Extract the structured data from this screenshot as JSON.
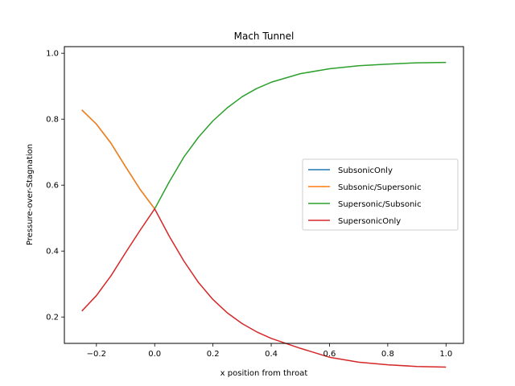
{
  "chart_data": {
    "type": "line",
    "title": "Mach Tunnel",
    "xlabel": "x position from throat",
    "ylabel": "Pressure-over-Stagnation",
    "xlim": [
      -0.31,
      1.06
    ],
    "ylim": [
      0.12,
      1.02
    ],
    "xticks": [
      -0.2,
      0.0,
      0.2,
      0.4,
      0.6,
      0.8,
      1.0
    ],
    "xtick_labels": [
      "−0.2",
      "0.0",
      "0.2",
      "0.4",
      "0.6",
      "0.8",
      "1.0"
    ],
    "yticks": [
      0.2,
      0.4,
      0.6,
      0.8,
      1.0
    ],
    "ytick_labels": [
      "0.2",
      "0.4",
      "0.6",
      "0.8",
      "1.0"
    ],
    "grid": false,
    "legend_position": "center-right",
    "series": [
      {
        "name": "SubsonicOnly",
        "color": "#1f77b4",
        "x": [
          -0.25,
          -0.2,
          -0.15,
          -0.1,
          -0.05,
          0.0
        ],
        "y": [
          0.828,
          0.785,
          0.727,
          0.656,
          0.587,
          0.528
        ]
      },
      {
        "name": "Subsonic/Supersonic",
        "color": "#ff7f0e",
        "x": [
          -0.25,
          -0.2,
          -0.15,
          -0.1,
          -0.05,
          0.0
        ],
        "y": [
          0.828,
          0.785,
          0.727,
          0.656,
          0.587,
          0.528
        ]
      },
      {
        "name": "Supersonic/Subsonic",
        "color": "#2ca02c",
        "x": [
          0.0,
          0.05,
          0.1,
          0.15,
          0.2,
          0.25,
          0.3,
          0.35,
          0.4,
          0.5,
          0.6,
          0.7,
          0.8,
          0.9,
          1.0
        ],
        "y": [
          0.528,
          0.61,
          0.685,
          0.745,
          0.795,
          0.835,
          0.868,
          0.893,
          0.912,
          0.938,
          0.953,
          0.962,
          0.967,
          0.971,
          0.972
        ]
      },
      {
        "name": "SupersonicOnly",
        "color": "#d62728",
        "x": [
          -0.25,
          -0.2,
          -0.15,
          -0.1,
          -0.05,
          0.0,
          0.05,
          0.1,
          0.15,
          0.2,
          0.25,
          0.3,
          0.35,
          0.4,
          0.5,
          0.6,
          0.7,
          0.8,
          0.9,
          1.0
        ],
        "y": [
          0.218,
          0.265,
          0.325,
          0.395,
          0.463,
          0.528,
          0.445,
          0.37,
          0.305,
          0.253,
          0.212,
          0.18,
          0.155,
          0.135,
          0.105,
          0.078,
          0.063,
          0.055,
          0.05,
          0.048
        ]
      }
    ]
  }
}
